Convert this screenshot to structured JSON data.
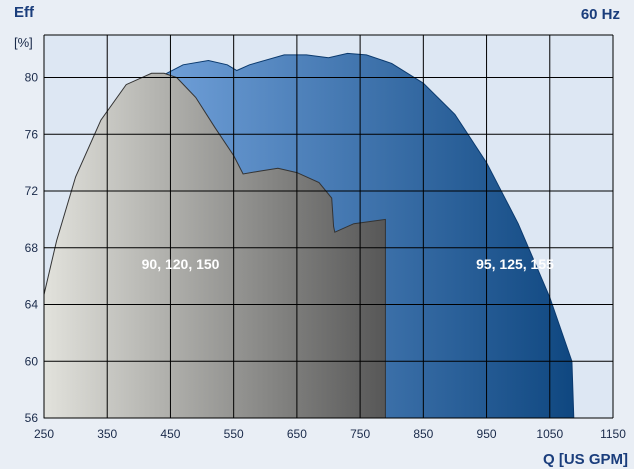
{
  "header": {
    "y_title": "Eff",
    "y_unit": "[%]",
    "frequency": "60 Hz",
    "x_title": "Q [US GPM]"
  },
  "chart_data": {
    "type": "area",
    "title": "",
    "xlabel": "Q [US GPM]",
    "ylabel": "Eff",
    "y_unit": "[%]",
    "frequency_label": "60 Hz",
    "xlim": [
      250,
      1150
    ],
    "ylim": [
      56,
      83
    ],
    "x_ticks": [
      250,
      350,
      450,
      550,
      650,
      750,
      850,
      950,
      1050,
      1150
    ],
    "y_ticks": [
      56,
      60,
      64,
      68,
      72,
      76,
      80
    ],
    "grid": true,
    "legend": "none",
    "series": [
      {
        "name": "95, 125, 155",
        "color": "#1f5a99",
        "points": [
          [
            440,
            80.2
          ],
          [
            470,
            80.9
          ],
          [
            510,
            81.2
          ],
          [
            540,
            80.9
          ],
          [
            555,
            80.5
          ],
          [
            575,
            80.9
          ],
          [
            630,
            81.6
          ],
          [
            665,
            81.6
          ],
          [
            700,
            81.4
          ],
          [
            730,
            81.7
          ],
          [
            760,
            81.6
          ],
          [
            800,
            81.0
          ],
          [
            850,
            79.6
          ],
          [
            900,
            77.4
          ],
          [
            950,
            74.0
          ],
          [
            1000,
            69.7
          ],
          [
            1050,
            64.5
          ],
          [
            1085,
            60.0
          ],
          [
            1088,
            56.0
          ]
        ]
      },
      {
        "name": "90, 120, 150",
        "color": "#8c8c8c",
        "points": [
          [
            250,
            64.7
          ],
          [
            270,
            68.5
          ],
          [
            300,
            73.0
          ],
          [
            340,
            77.0
          ],
          [
            380,
            79.5
          ],
          [
            420,
            80.3
          ],
          [
            440,
            80.3
          ],
          [
            460,
            80.0
          ],
          [
            490,
            78.6
          ],
          [
            520,
            76.5
          ],
          [
            550,
            74.5
          ],
          [
            565,
            73.2
          ],
          [
            590,
            73.4
          ],
          [
            620,
            73.6
          ],
          [
            650,
            73.3
          ],
          [
            685,
            72.6
          ],
          [
            705,
            71.5
          ],
          [
            708,
            69.5
          ],
          [
            710,
            69.1
          ],
          [
            740,
            69.7
          ],
          [
            790,
            70.0
          ],
          [
            790,
            56.0
          ]
        ]
      }
    ]
  }
}
